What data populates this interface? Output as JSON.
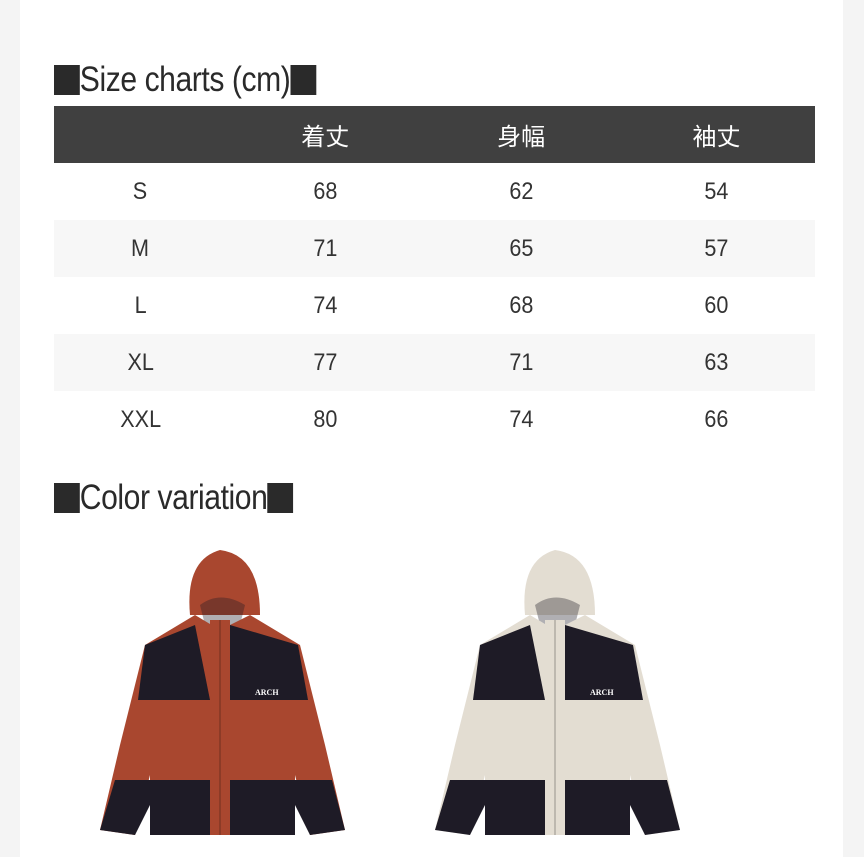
{
  "size_chart": {
    "title": "Size charts (cm)",
    "columns": [
      "",
      "着丈",
      "身幅",
      "袖丈"
    ],
    "rows": [
      {
        "size": "S",
        "values": [
          "68",
          "62",
          "54"
        ]
      },
      {
        "size": "M",
        "values": [
          "71",
          "65",
          "57"
        ]
      },
      {
        "size": "L",
        "values": [
          "74",
          "68",
          "60"
        ]
      },
      {
        "size": "XL",
        "values": [
          "77",
          "71",
          "63"
        ]
      },
      {
        "size": "XXL",
        "values": [
          "80",
          "74",
          "66"
        ]
      }
    ]
  },
  "color_variation": {
    "title": "Color variation",
    "items": [
      {
        "name": "red",
        "logo": "ARCH",
        "main_color": "#a9472f",
        "block_color": "#1e1b26"
      },
      {
        "name": "beige",
        "logo": "ARCH",
        "main_color": "#e3ddd2",
        "block_color": "#1e1b26"
      }
    ]
  }
}
